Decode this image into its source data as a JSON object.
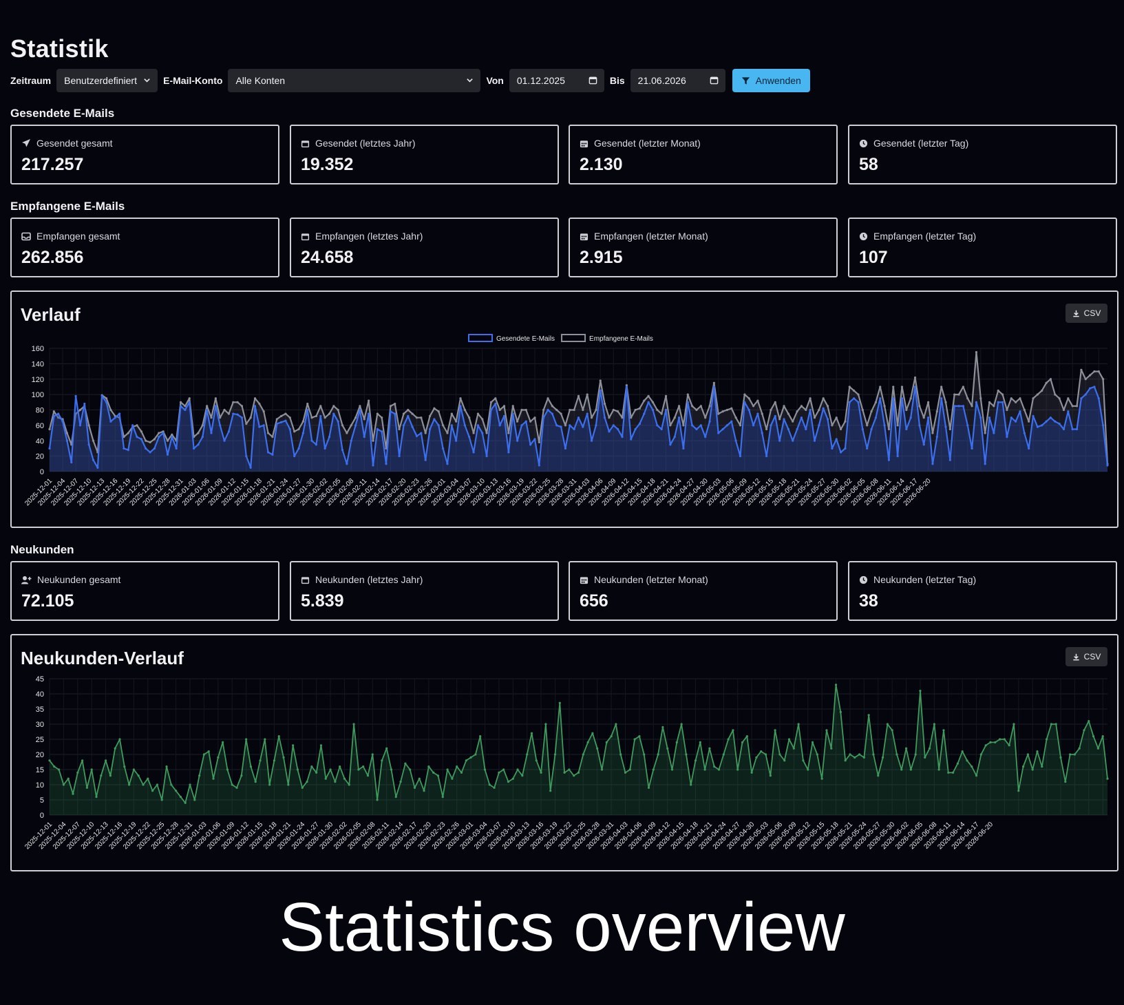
{
  "page": {
    "title": "Statistik"
  },
  "filters": {
    "period_label": "Zeitraum",
    "period_value": "Benutzerdefiniert",
    "account_label": "E-Mail-Konto",
    "account_value": "Alle Konten",
    "from_label": "Von",
    "from_value": "01.12.2025",
    "to_label": "Bis",
    "to_value": "21.06.2026",
    "apply_label": "Anwenden",
    "apply_color": "#48b6f0"
  },
  "sent": {
    "title": "Gesendete E-Mails",
    "cards": [
      {
        "icon": "paper-plane-icon",
        "label": "Gesendet gesamt",
        "value": "217.257"
      },
      {
        "icon": "calendar-icon",
        "label": "Gesendet (letztes Jahr)",
        "value": "19.352"
      },
      {
        "icon": "calendar-grid-icon",
        "label": "Gesendet (letzter Monat)",
        "value": "2.130"
      },
      {
        "icon": "clock-icon",
        "label": "Gesendet (letzter Tag)",
        "value": "58"
      }
    ]
  },
  "received": {
    "title": "Empfangene E-Mails",
    "cards": [
      {
        "icon": "inbox-icon",
        "label": "Empfangen gesamt",
        "value": "262.856"
      },
      {
        "icon": "calendar-icon",
        "label": "Empfangen (letztes Jahr)",
        "value": "24.658"
      },
      {
        "icon": "calendar-grid-icon",
        "label": "Empfangen (letzter Monat)",
        "value": "2.915"
      },
      {
        "icon": "clock-icon",
        "label": "Empfangen (letzter Tag)",
        "value": "107"
      }
    ]
  },
  "customers": {
    "title": "Neukunden",
    "cards": [
      {
        "icon": "user-plus-icon",
        "label": "Neukunden gesamt",
        "value": "72.105"
      },
      {
        "icon": "calendar-icon",
        "label": "Neukunden (letztes Jahr)",
        "value": "5.839"
      },
      {
        "icon": "calendar-grid-icon",
        "label": "Neukunden (letzter Monat)",
        "value": "656"
      },
      {
        "icon": "clock-icon",
        "label": "Neukunden (letzter Tag)",
        "value": "38"
      }
    ]
  },
  "verlauf": {
    "title": "Verlauf",
    "csv_label": "CSV"
  },
  "neukunden_verlauf": {
    "title": "Neukunden-Verlauf",
    "csv_label": "CSV"
  },
  "caption": "Statistics overview",
  "chart_data": [
    {
      "type": "line",
      "title": "Verlauf",
      "x_start": "2025-12-01",
      "x_end": "2026-06-21",
      "x_tick_labels": [
        "2025-12-01",
        "2025-12-04",
        "2025-12-07",
        "2025-12-10",
        "2025-12-13",
        "2025-12-16",
        "2025-12-19",
        "2025-12-22",
        "2025-12-25",
        "2025-12-28",
        "2025-12-31",
        "2026-01-03",
        "2026-01-06",
        "2026-01-09",
        "2026-01-12",
        "2026-01-15",
        "2026-01-18",
        "2026-01-21",
        "2026-01-24",
        "2026-01-27",
        "2026-01-30",
        "2026-02-02",
        "2026-02-05",
        "2026-02-08",
        "2026-02-11",
        "2026-02-14",
        "2026-02-17",
        "2026-02-20",
        "2026-02-23",
        "2026-02-26",
        "2026-03-01",
        "2026-03-04",
        "2026-03-07",
        "2026-03-10",
        "2026-03-13",
        "2026-03-16",
        "2026-03-19",
        "2026-03-22",
        "2026-03-25",
        "2026-03-28",
        "2026-03-31",
        "2026-04-03",
        "2026-04-06",
        "2026-04-09",
        "2026-04-12",
        "2026-04-15",
        "2026-04-18",
        "2026-04-21",
        "2026-04-24",
        "2026-04-27",
        "2026-04-30",
        "2026-05-03",
        "2026-05-06",
        "2026-05-09",
        "2026-05-12",
        "2026-05-15",
        "2026-05-18",
        "2026-05-21",
        "2026-05-24",
        "2026-05-27",
        "2026-05-30",
        "2026-06-02",
        "2026-06-05",
        "2026-06-08",
        "2026-06-11",
        "2026-06-14",
        "2026-06-17",
        "2026-06-20"
      ],
      "ylim": [
        0,
        160
      ],
      "y_ticks": [
        0,
        20,
        40,
        60,
        80,
        100,
        120,
        140,
        160
      ],
      "grid": true,
      "legend_position": "top-center",
      "series": [
        {
          "name": "Gesendete E-Mails",
          "color": "#3b6ff0",
          "values": [
            30,
            72,
            75,
            65,
            40,
            12,
            98,
            60,
            88,
            35,
            15,
            5,
            98,
            90,
            65,
            70,
            75,
            30,
            28,
            60,
            45,
            42,
            30,
            25,
            30,
            45,
            50,
            22,
            45,
            30,
            85,
            80,
            90,
            30,
            35,
            45,
            80,
            50,
            85,
            60,
            40,
            52,
            75,
            74,
            70,
            20,
            5,
            85,
            58,
            60,
            25,
            22,
            62,
            64,
            66,
            55,
            20,
            30,
            50,
            80,
            40,
            35,
            72,
            30,
            45,
            75,
            65,
            28,
            10,
            40,
            60,
            80,
            45,
            75,
            8,
            55,
            52,
            10,
            78,
            75,
            20,
            60,
            72,
            58,
            46,
            50,
            15,
            55,
            68,
            60,
            30,
            10,
            60,
            40,
            85,
            60,
            45,
            25,
            60,
            50,
            20,
            80,
            88,
            60,
            72,
            25,
            75,
            40,
            60,
            65,
            35,
            42,
            8,
            70,
            80,
            75,
            60,
            58,
            30,
            60,
            55,
            70,
            58,
            75,
            40,
            60,
            105,
            70,
            52,
            60,
            55,
            45,
            110,
            42,
            55,
            62,
            75,
            90,
            80,
            60,
            55,
            80,
            35,
            45,
            70,
            30,
            90,
            60,
            55,
            60,
            45,
            65,
            110,
            50,
            55,
            60,
            65,
            40,
            20,
            90,
            80,
            60,
            75,
            50,
            20,
            60,
            72,
            40,
            68,
            55,
            40,
            55,
            70,
            55,
            80,
            40,
            60,
            82,
            68,
            30,
            42,
            25,
            30,
            90,
            95,
            90,
            55,
            30,
            55,
            70,
            95,
            60,
            15,
            95,
            20,
            95,
            55,
            70,
            110,
            60,
            35,
            70,
            10,
            45,
            95,
            58,
            15,
            85,
            85,
            85,
            60,
            30,
            90,
            70,
            10,
            70,
            50,
            90,
            90,
            45,
            70,
            65,
            78,
            50,
            30,
            72,
            58,
            60,
            65,
            70,
            65,
            62,
            55,
            78,
            55,
            55,
            95,
            100,
            108,
            110,
            95,
            60,
            8
          ]
        },
        {
          "name": "Empfangene E-Mails",
          "color": "#8e9099",
          "values": [
            55,
            78,
            70,
            68,
            50,
            35,
            75,
            80,
            85,
            60,
            40,
            25,
            99,
            95,
            80,
            72,
            70,
            45,
            50,
            58,
            60,
            52,
            40,
            38,
            42,
            50,
            52,
            40,
            48,
            40,
            90,
            85,
            95,
            45,
            50,
            60,
            85,
            70,
            95,
            70,
            80,
            75,
            90,
            90,
            85,
            62,
            70,
            95,
            88,
            78,
            50,
            45,
            68,
            72,
            75,
            70,
            52,
            55,
            65,
            88,
            70,
            72,
            85,
            70,
            75,
            85,
            80,
            60,
            50,
            60,
            70,
            85,
            68,
            92,
            40,
            75,
            70,
            30,
            85,
            88,
            55,
            75,
            80,
            75,
            70,
            70,
            50,
            72,
            82,
            78,
            60,
            50,
            75,
            65,
            95,
            80,
            70,
            50,
            75,
            68,
            50,
            90,
            95,
            80,
            85,
            50,
            85,
            65,
            80,
            80,
            65,
            70,
            38,
            80,
            95,
            85,
            80,
            75,
            60,
            80,
            80,
            98,
            80,
            100,
            70,
            80,
            118,
            88,
            70,
            80,
            78,
            70,
            112,
            70,
            80,
            82,
            92,
            98,
            90,
            80,
            75,
            98,
            60,
            70,
            85,
            60,
            100,
            85,
            80,
            85,
            70,
            85,
            115,
            75,
            78,
            80,
            82,
            70,
            60,
            100,
            95,
            85,
            92,
            75,
            55,
            80,
            90,
            68,
            85,
            75,
            65,
            78,
            85,
            80,
            95,
            70,
            80,
            95,
            85,
            60,
            70,
            55,
            65,
            110,
            105,
            100,
            80,
            60,
            78,
            90,
            110,
            85,
            55,
            110,
            60,
            110,
            80,
            95,
            122,
            85,
            70,
            90,
            50,
            78,
            110,
            90,
            55,
            100,
            100,
            110,
            95,
            85,
            155,
            95,
            50,
            90,
            85,
            105,
            100,
            80,
            95,
            90,
            95,
            80,
            65,
            95,
            100,
            105,
            115,
            120,
            100,
            95,
            80,
            95,
            85,
            85,
            132,
            120,
            125,
            130,
            130,
            120,
            10
          ]
        }
      ]
    },
    {
      "type": "area",
      "title": "Neukunden-Verlauf",
      "x_start": "2025-12-01",
      "x_end": "2026-06-21",
      "x_tick_labels": [
        "2025-12-01",
        "2025-12-04",
        "2025-12-07",
        "2025-12-10",
        "2025-12-13",
        "2025-12-16",
        "2025-12-19",
        "2025-12-22",
        "2025-12-25",
        "2025-12-28",
        "2025-12-31",
        "2026-01-03",
        "2026-01-06",
        "2026-01-09",
        "2026-01-12",
        "2026-01-15",
        "2026-01-18",
        "2026-01-21",
        "2026-01-24",
        "2026-01-27",
        "2026-01-30",
        "2026-02-02",
        "2026-02-05",
        "2026-02-08",
        "2026-02-11",
        "2026-02-14",
        "2026-02-17",
        "2026-02-20",
        "2026-02-23",
        "2026-02-26",
        "2026-03-01",
        "2026-03-04",
        "2026-03-07",
        "2026-03-10",
        "2026-03-13",
        "2026-03-16",
        "2026-03-19",
        "2026-03-22",
        "2026-03-25",
        "2026-03-28",
        "2026-03-31",
        "2026-04-03",
        "2026-04-06",
        "2026-04-09",
        "2026-04-12",
        "2026-04-15",
        "2026-04-18",
        "2026-04-21",
        "2026-04-24",
        "2026-04-27",
        "2026-04-30",
        "2026-05-03",
        "2026-05-06",
        "2026-05-09",
        "2026-05-12",
        "2026-05-15",
        "2026-05-18",
        "2026-05-21",
        "2026-05-24",
        "2026-05-27",
        "2026-05-30",
        "2026-06-02",
        "2026-06-05",
        "2026-06-08",
        "2026-06-11",
        "2026-06-14",
        "2026-06-17",
        "2026-06-20"
      ],
      "ylim": [
        0,
        45
      ],
      "y_ticks": [
        0,
        5,
        10,
        15,
        20,
        25,
        30,
        35,
        40,
        45
      ],
      "grid": true,
      "series": [
        {
          "name": "",
          "color": "#3f9a5e",
          "values": [
            18,
            16,
            15,
            10,
            12,
            7,
            14,
            18,
            9,
            15,
            6,
            13,
            18,
            13,
            22,
            25,
            16,
            10,
            15,
            13,
            10,
            12,
            8,
            10,
            5,
            16,
            10,
            8,
            6,
            4,
            10,
            5,
            13,
            20,
            21,
            12,
            19,
            24,
            15,
            10,
            9,
            13,
            25,
            16,
            11,
            18,
            25,
            10,
            18,
            26,
            19,
            10,
            23,
            15,
            9,
            11,
            16,
            14,
            23,
            12,
            15,
            11,
            16,
            12,
            10,
            30,
            15,
            16,
            13,
            20,
            5,
            18,
            22,
            15,
            6,
            11,
            17,
            15,
            9,
            12,
            8,
            16,
            14,
            13,
            6,
            15,
            12,
            16,
            14,
            18,
            19,
            20,
            26,
            15,
            10,
            9,
            14,
            15,
            11,
            12,
            15,
            13,
            20,
            27,
            18,
            14,
            30,
            8,
            20,
            37,
            14,
            15,
            13,
            14,
            20,
            24,
            27,
            22,
            15,
            24,
            26,
            30,
            20,
            14,
            15,
            25,
            26,
            20,
            9,
            15,
            20,
            29,
            22,
            15,
            24,
            30,
            20,
            10,
            18,
            24,
            15,
            22,
            16,
            15,
            20,
            25,
            28,
            15,
            24,
            26,
            14,
            19,
            21,
            20,
            13,
            28,
            20,
            18,
            25,
            22,
            30,
            18,
            15,
            24,
            20,
            12,
            28,
            22,
            43,
            34,
            18,
            20,
            19,
            20,
            19,
            33,
            20,
            13,
            19,
            30,
            28,
            20,
            15,
            22,
            15,
            20,
            41,
            19,
            22,
            30,
            15,
            28,
            14,
            14,
            17,
            21,
            18,
            16,
            13,
            20,
            23,
            24,
            24,
            25,
            25,
            23,
            30,
            8,
            16,
            20,
            15,
            21,
            16,
            25,
            30,
            30,
            19,
            11,
            20,
            20,
            22,
            28,
            31,
            26,
            22,
            26,
            12
          ]
        }
      ]
    }
  ]
}
